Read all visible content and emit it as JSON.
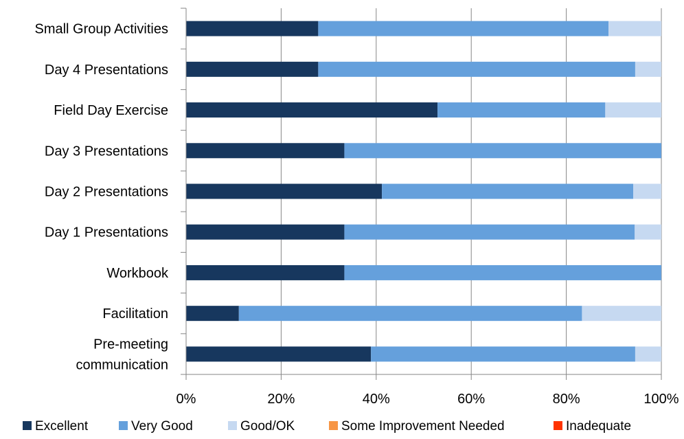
{
  "chart_data": {
    "type": "bar",
    "orientation": "horizontal",
    "stacked": true,
    "percent": true,
    "title": "",
    "xlabel": "",
    "ylabel": "",
    "xlim": [
      0,
      100
    ],
    "grid": true,
    "legend_position": "bottom",
    "categories": [
      "Small Group Activities",
      "Day 4 Presentations",
      "Field Day Exercise",
      "Day 3 Presentations",
      "Day 2 Presentations",
      "Day 1 Presentations",
      "Workbook",
      "Facilitation",
      "Pre-meeting communication"
    ],
    "category_lines": [
      [
        "Small Group Activities"
      ],
      [
        "Day 4 Presentations"
      ],
      [
        "Field Day Exercise"
      ],
      [
        "Day 3 Presentations"
      ],
      [
        "Day 2 Presentations"
      ],
      [
        "Day 1 Presentations"
      ],
      [
        "Workbook"
      ],
      [
        "Facilitation"
      ],
      [
        "Pre-meeting",
        "communication"
      ]
    ],
    "tick_labels": [
      "0%",
      "20%",
      "40%",
      "60%",
      "80%",
      "100%"
    ],
    "tick_values": [
      0,
      20,
      40,
      60,
      80,
      100
    ],
    "series": [
      {
        "name": "Excellent",
        "color": "#17375e",
        "values": [
          27.8,
          27.8,
          52.9,
          33.3,
          41.2,
          33.3,
          33.3,
          11.1,
          38.9
        ]
      },
      {
        "name": "Very Good",
        "color": "#65a0dc",
        "values": [
          61.1,
          66.7,
          35.3,
          66.7,
          52.9,
          61.1,
          66.7,
          72.2,
          55.6
        ]
      },
      {
        "name": "Good/OK",
        "color": "#c6d9f1",
        "values": [
          11.1,
          5.5,
          11.8,
          0,
          5.9,
          5.6,
          0,
          16.7,
          5.5
        ]
      },
      {
        "name": "Some Improvement Needed",
        "color": "#f79646",
        "values": [
          0,
          0,
          0,
          0,
          0,
          0,
          0,
          0,
          0
        ]
      },
      {
        "name": "Inadequate",
        "color": "#ff3300",
        "values": [
          0,
          0,
          0,
          0,
          0,
          0,
          0,
          0,
          0
        ]
      }
    ]
  }
}
